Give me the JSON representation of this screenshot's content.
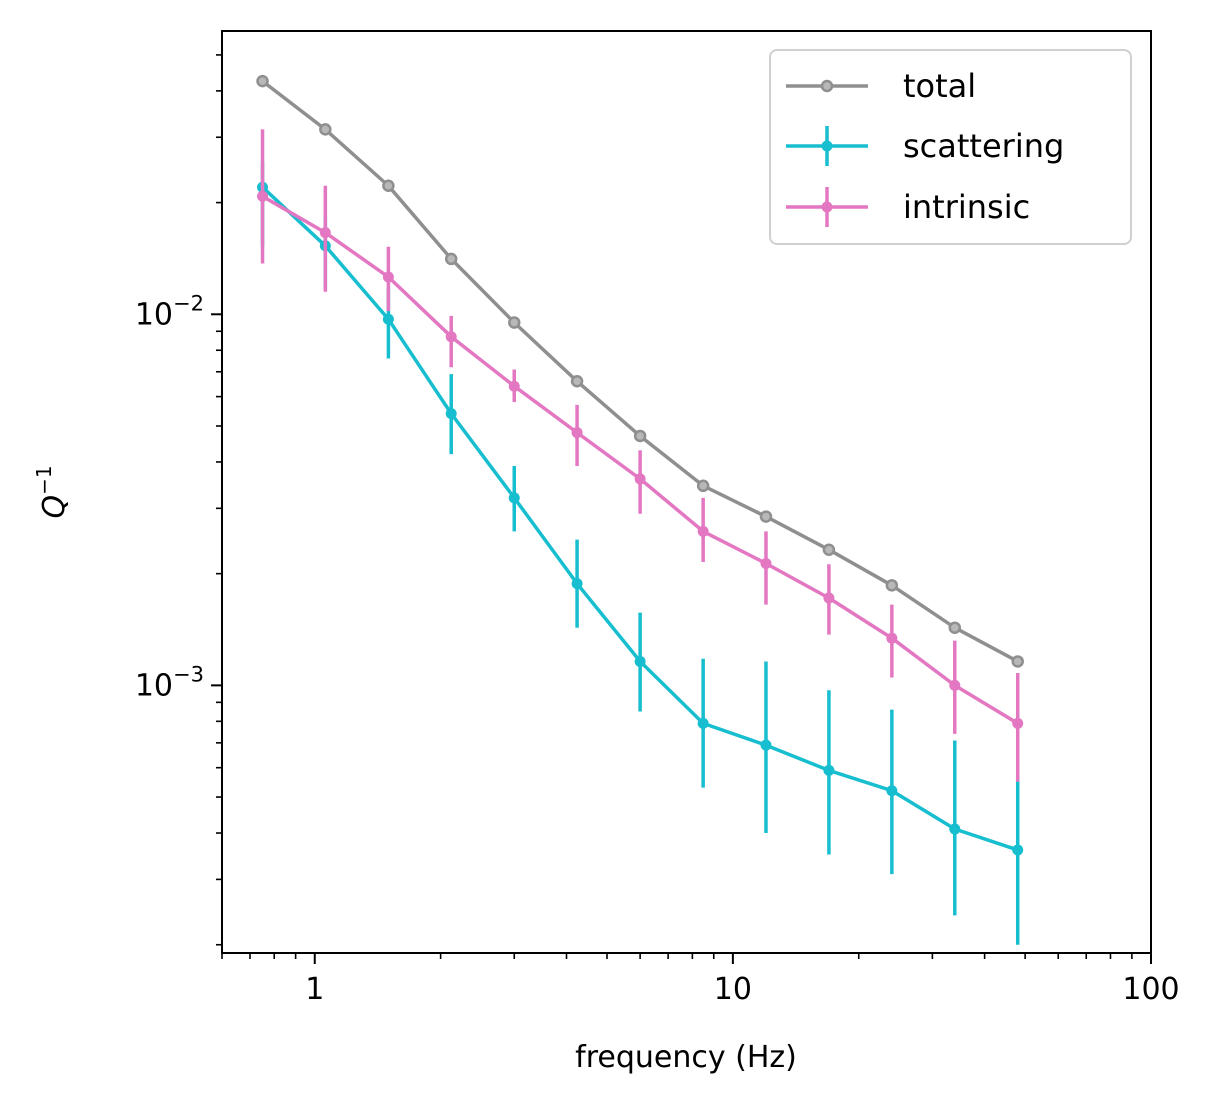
{
  "chart_data": {
    "type": "line",
    "title": "",
    "xlabel": "frequency (Hz)",
    "ylabel": "Q^-1",
    "ylabel_base": "Q",
    "ylabel_exp": "−1",
    "xscale": "log",
    "yscale": "log",
    "xlim": [
      0.6,
      100
    ],
    "ylim": [
      0.00019,
      0.058
    ],
    "grid": false,
    "legend_position": "top-right",
    "x_ticks": [
      {
        "value": 1,
        "label": "1"
      },
      {
        "value": 10,
        "label": "10"
      },
      {
        "value": 100,
        "label": "100"
      }
    ],
    "y_ticks": [
      {
        "value": 0.01,
        "base": "10",
        "exp": "−2"
      },
      {
        "value": 0.001,
        "base": "10",
        "exp": "−3"
      }
    ],
    "x": [
      0.75,
      1.06,
      1.5,
      2.12,
      3.0,
      4.24,
      6.0,
      8.49,
      12.0,
      16.97,
      24.0,
      33.94,
      48.0
    ],
    "series": [
      {
        "name": "total",
        "color": "#8f8f8f",
        "marker": "hollow-circle",
        "values": [
          0.0425,
          0.0315,
          0.0222,
          0.0141,
          0.0095,
          0.0066,
          0.0047,
          0.00345,
          0.00285,
          0.00232,
          0.00186,
          0.00143,
          0.00116
        ]
      },
      {
        "name": "scattering",
        "color": "#17becf",
        "marker": "filled-circle",
        "values": [
          0.022,
          0.0153,
          0.0097,
          0.0054,
          0.0032,
          0.00188,
          0.00116,
          0.00079,
          0.00069,
          0.00059,
          0.00052,
          0.00041,
          0.00036
        ],
        "err_low": [
          0.0152,
          0.0117,
          0.0076,
          0.0042,
          0.0026,
          0.00143,
          0.00085,
          0.00053,
          0.0004,
          0.00035,
          0.00031,
          0.00024,
          0.0002
        ],
        "err_high": [
          0.0258,
          0.0183,
          0.0118,
          0.0069,
          0.0039,
          0.00247,
          0.00157,
          0.00118,
          0.00116,
          0.00097,
          0.00086,
          0.00071,
          0.00057
        ]
      },
      {
        "name": "intrinsic",
        "color": "#e377c2",
        "marker": "filled-circle",
        "values": [
          0.0208,
          0.0166,
          0.0126,
          0.0087,
          0.0064,
          0.0048,
          0.0036,
          0.0026,
          0.00213,
          0.00172,
          0.00134,
          0.001,
          0.00079
        ],
        "err_low": [
          0.0137,
          0.0115,
          0.0102,
          0.0072,
          0.0058,
          0.0039,
          0.0029,
          0.00215,
          0.00165,
          0.00137,
          0.00105,
          0.00074,
          0.00055
        ],
        "err_high": [
          0.0315,
          0.0222,
          0.0152,
          0.0099,
          0.0071,
          0.0057,
          0.0043,
          0.0032,
          0.0026,
          0.00212,
          0.00165,
          0.00132,
          0.00108
        ]
      }
    ]
  }
}
